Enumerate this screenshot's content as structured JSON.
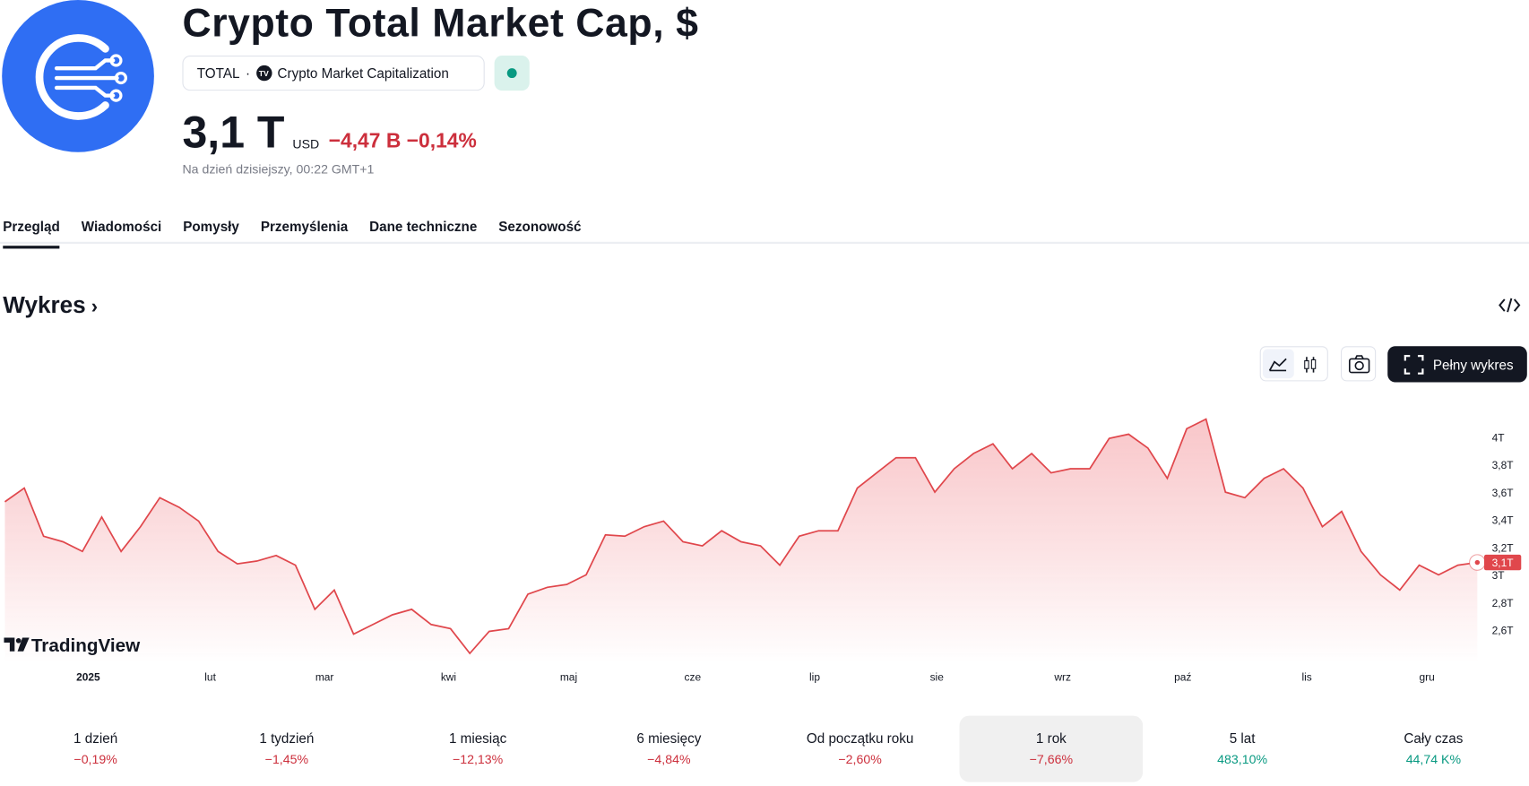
{
  "header": {
    "title": "Crypto Total Market Cap, $",
    "ticker": "TOTAL",
    "source": "Crypto Market Capitalization",
    "price": "3,1 T",
    "currency": "USD",
    "change": "−4,47 B",
    "change_pct": "−0,14%",
    "timestamp": "Na dzień dzisiejszy, 00:22 GMT+1"
  },
  "tabs": [
    "Przegląd",
    "Wiadomości",
    "Pomysły",
    "Przemyślenia",
    "Dane techniczne",
    "Sezonowość"
  ],
  "section_title": "Wykres",
  "full_chart_button": "Pełny wykres",
  "brand": "TradingView",
  "chart_data": {
    "type": "line",
    "color": "#e0474c",
    "values": [
      3.54,
      3.64,
      3.29,
      3.25,
      3.18,
      3.43,
      3.18,
      3.36,
      3.57,
      3.5,
      3.4,
      3.18,
      3.09,
      3.11,
      3.15,
      3.08,
      2.76,
      2.9,
      2.58,
      2.65,
      2.72,
      2.76,
      2.65,
      2.62,
      2.44,
      2.6,
      2.62,
      2.87,
      2.92,
      2.94,
      3.01,
      3.3,
      3.29,
      3.36,
      3.4,
      3.25,
      3.22,
      3.33,
      3.25,
      3.22,
      3.08,
      3.29,
      3.33,
      3.33,
      3.64,
      3.75,
      3.86,
      3.86,
      3.61,
      3.78,
      3.89,
      3.96,
      3.78,
      3.89,
      3.75,
      3.78,
      3.78,
      4.0,
      4.03,
      3.93,
      3.71,
      4.07,
      4.14,
      3.61,
      3.57,
      3.71,
      3.78,
      3.64,
      3.36,
      3.47,
      3.18,
      3.01,
      2.9,
      3.08,
      3.01,
      3.08,
      3.1
    ],
    "last_value_label": "3,1T",
    "xlim": [
      0,
      76
    ],
    "xticks": [
      {
        "value": 4.3,
        "label": "2025"
      },
      {
        "value": 10.6,
        "label": "lut"
      },
      {
        "value": 16.5,
        "label": "mar"
      },
      {
        "value": 22.9,
        "label": "kwi"
      },
      {
        "value": 29.1,
        "label": "maj"
      },
      {
        "value": 35.5,
        "label": "cze"
      },
      {
        "value": 41.8,
        "label": "lip"
      },
      {
        "value": 48.1,
        "label": "sie"
      },
      {
        "value": 54.6,
        "label": "wrz"
      },
      {
        "value": 60.8,
        "label": "paź"
      },
      {
        "value": 67.2,
        "label": "lis"
      },
      {
        "value": 73.4,
        "label": "gru"
      }
    ],
    "ylim": [
      2.37,
      4.28
    ],
    "yticks": [
      {
        "value": 2.6,
        "label": "2,6T"
      },
      {
        "value": 2.8,
        "label": "2,8T"
      },
      {
        "value": 3,
        "label": "3T"
      },
      {
        "value": 3.2,
        "label": "3,2T"
      },
      {
        "value": 3.4,
        "label": "3,4T"
      },
      {
        "value": 3.6,
        "label": "3,6T"
      },
      {
        "value": 3.8,
        "label": "3,8T"
      },
      {
        "value": 4,
        "label": "4T"
      }
    ]
  },
  "performance": [
    {
      "period": "1 dzień",
      "change": "−0,19%"
    },
    {
      "period": "1 tydzień",
      "change": "−1,45%"
    },
    {
      "period": "1 miesiąc",
      "change": "−12,13%"
    },
    {
      "period": "6 miesięcy",
      "change": "−4,84%"
    },
    {
      "period": "Od początku roku",
      "change": "−2,60%"
    },
    {
      "period": "1 rok",
      "change": "−7,66%"
    },
    {
      "period": "5 lat",
      "change": "483,10%"
    },
    {
      "period": "Cały czas",
      "change": "44,74 K%"
    }
  ]
}
